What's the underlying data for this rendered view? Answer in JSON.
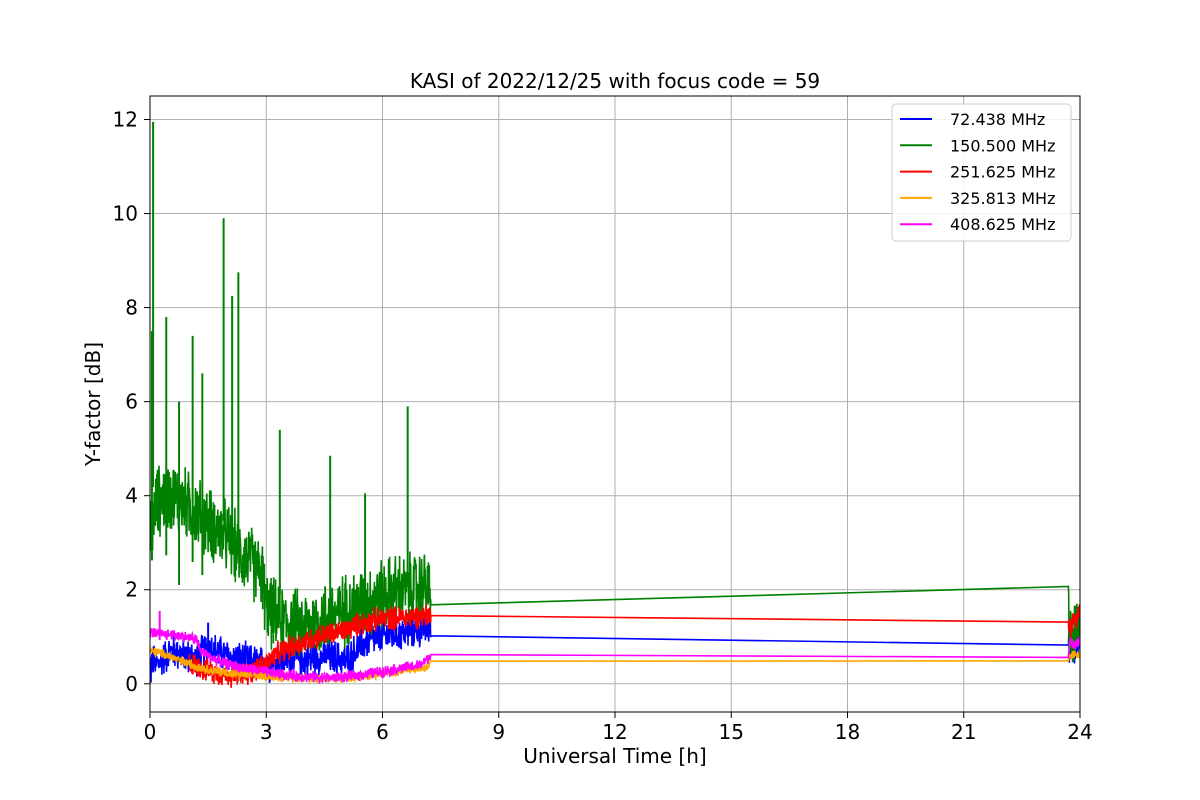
{
  "chart_data": {
    "type": "line",
    "title": "KASI of 2022/12/25 with focus code = 59",
    "xlabel": "Universal Time [h]",
    "ylabel": "Y-factor [dB]",
    "xlim": [
      0,
      24
    ],
    "ylim": [
      -0.6,
      12.5
    ],
    "xticks": [
      0,
      3,
      6,
      9,
      12,
      15,
      18,
      21,
      24
    ],
    "yticks": [
      0,
      2,
      4,
      6,
      8,
      10,
      12
    ],
    "grid": true,
    "legend_position": "top-right",
    "series": [
      {
        "name": " 72.438 MHz",
        "color": "#0000ff",
        "points": [
          [
            0,
            0.1
          ],
          [
            0.05,
            0.5
          ],
          [
            0.2,
            0.4
          ],
          [
            0.4,
            0.6
          ],
          [
            0.6,
            0.7
          ],
          [
            0.9,
            0.6
          ],
          [
            1.2,
            0.55
          ],
          [
            1.5,
            0.8
          ],
          [
            1.8,
            0.65
          ],
          [
            2.1,
            0.55
          ],
          [
            2.4,
            0.5
          ],
          [
            2.7,
            0.45
          ],
          [
            3.0,
            0.4
          ],
          [
            3.3,
            0.45
          ],
          [
            3.6,
            0.55
          ],
          [
            3.9,
            0.5
          ],
          [
            4.2,
            0.55
          ],
          [
            4.5,
            0.6
          ],
          [
            4.8,
            0.55
          ],
          [
            5.1,
            0.5
          ],
          [
            5.4,
            0.8
          ],
          [
            5.7,
            0.95
          ],
          [
            6.0,
            1.0
          ],
          [
            6.3,
            1.05
          ],
          [
            6.6,
            1.1
          ],
          [
            6.9,
            1.15
          ],
          [
            7.2,
            1.2
          ],
          [
            7.25,
            1.02
          ],
          [
            23.7,
            1.0
          ],
          [
            23.75,
            0.7
          ],
          [
            24,
            0.85
          ]
        ],
        "noise": 0.45
      },
      {
        "name": "150.500 MHz",
        "color": "#008000",
        "points": [
          [
            0,
            3.2
          ],
          [
            0.2,
            3.9
          ],
          [
            0.5,
            4.0
          ],
          [
            0.8,
            3.9
          ],
          [
            1.1,
            3.7
          ],
          [
            1.4,
            3.5
          ],
          [
            1.7,
            3.3
          ],
          [
            2.0,
            3.1
          ],
          [
            2.3,
            2.8
          ],
          [
            2.6,
            2.6
          ],
          [
            2.9,
            2.3
          ],
          [
            3.0,
            1.6
          ],
          [
            3.3,
            1.4
          ],
          [
            3.6,
            1.3
          ],
          [
            3.9,
            1.2
          ],
          [
            4.2,
            1.3
          ],
          [
            4.5,
            1.4
          ],
          [
            4.8,
            1.5
          ],
          [
            5.1,
            1.6
          ],
          [
            5.4,
            1.7
          ],
          [
            5.7,
            1.8
          ],
          [
            6.0,
            1.9
          ],
          [
            6.3,
            2.0
          ],
          [
            6.6,
            2.0
          ],
          [
            6.9,
            2.05
          ],
          [
            7.2,
            2.1
          ],
          [
            7.25,
            1.68
          ],
          [
            23.7,
            1.66
          ],
          [
            23.75,
            0.8
          ],
          [
            24,
            1.2
          ]
        ],
        "noise": 0.9
      },
      {
        "name": "251.625 MHz",
        "color": "#ff0000",
        "points": [
          [
            1.0,
            0.45
          ],
          [
            1.3,
            0.35
          ],
          [
            1.6,
            0.25
          ],
          [
            1.9,
            0.2
          ],
          [
            2.2,
            0.18
          ],
          [
            2.5,
            0.2
          ],
          [
            2.8,
            0.35
          ],
          [
            3.1,
            0.5
          ],
          [
            3.4,
            0.7
          ],
          [
            3.7,
            0.8
          ],
          [
            4.0,
            0.9
          ],
          [
            4.3,
            1.0
          ],
          [
            4.6,
            1.05
          ],
          [
            4.9,
            1.1
          ],
          [
            5.2,
            1.2
          ],
          [
            5.5,
            1.3
          ],
          [
            5.8,
            1.35
          ],
          [
            6.1,
            1.4
          ],
          [
            6.4,
            1.4
          ],
          [
            6.7,
            1.42
          ],
          [
            7.0,
            1.45
          ],
          [
            7.25,
            1.45
          ],
          [
            23.7,
            1.45
          ],
          [
            23.75,
            1.2
          ],
          [
            24,
            1.6
          ]
        ],
        "noise": 0.3
      },
      {
        "name": "325.813 MHz",
        "color": "#ffa500",
        "points": [
          [
            0,
            0.7
          ],
          [
            0.3,
            0.65
          ],
          [
            0.6,
            0.55
          ],
          [
            0.9,
            0.45
          ],
          [
            1.2,
            0.38
          ],
          [
            1.5,
            0.3
          ],
          [
            1.8,
            0.25
          ],
          [
            2.1,
            0.22
          ],
          [
            2.4,
            0.2
          ],
          [
            2.7,
            0.18
          ],
          [
            3.0,
            0.17
          ],
          [
            3.3,
            0.15
          ],
          [
            3.6,
            0.14
          ],
          [
            3.9,
            0.12
          ],
          [
            4.2,
            0.12
          ],
          [
            4.5,
            0.12
          ],
          [
            4.8,
            0.12
          ],
          [
            5.1,
            0.13
          ],
          [
            5.4,
            0.15
          ],
          [
            5.7,
            0.18
          ],
          [
            6.0,
            0.22
          ],
          [
            6.3,
            0.26
          ],
          [
            6.6,
            0.3
          ],
          [
            6.9,
            0.33
          ],
          [
            7.2,
            0.35
          ],
          [
            7.25,
            0.48
          ],
          [
            23.7,
            0.48
          ],
          [
            23.75,
            0.6
          ],
          [
            24,
            0.65
          ]
        ],
        "noise": 0.12
      },
      {
        "name": "408.625 MHz",
        "color": "#ff00ff",
        "points": [
          [
            0,
            1.1
          ],
          [
            0.3,
            1.05
          ],
          [
            0.6,
            1.05
          ],
          [
            0.9,
            1.0
          ],
          [
            1.2,
            0.95
          ],
          [
            1.3,
            0.7
          ],
          [
            1.6,
            0.55
          ],
          [
            1.9,
            0.45
          ],
          [
            2.2,
            0.38
          ],
          [
            2.5,
            0.32
          ],
          [
            2.8,
            0.28
          ],
          [
            3.1,
            0.24
          ],
          [
            3.4,
            0.2
          ],
          [
            3.7,
            0.17
          ],
          [
            4.0,
            0.15
          ],
          [
            4.3,
            0.14
          ],
          [
            4.6,
            0.13
          ],
          [
            4.9,
            0.14
          ],
          [
            5.2,
            0.16
          ],
          [
            5.5,
            0.2
          ],
          [
            5.8,
            0.24
          ],
          [
            6.1,
            0.28
          ],
          [
            6.4,
            0.32
          ],
          [
            6.7,
            0.36
          ],
          [
            7.0,
            0.4
          ],
          [
            7.25,
            0.62
          ],
          [
            23.7,
            0.62
          ],
          [
            23.75,
            0.85
          ],
          [
            24,
            0.9
          ]
        ],
        "noise": 0.14
      }
    ],
    "spikes": [
      {
        "series": 1,
        "x": 0.08,
        "y": 11.95
      },
      {
        "series": 1,
        "x": 0.05,
        "y": 7.5
      },
      {
        "series": 1,
        "x": 0.42,
        "y": 7.8
      },
      {
        "series": 1,
        "x": 1.1,
        "y": 7.4
      },
      {
        "series": 1,
        "x": 0.75,
        "y": 6.0
      },
      {
        "series": 1,
        "x": 1.35,
        "y": 6.6
      },
      {
        "series": 1,
        "x": 1.9,
        "y": 9.9
      },
      {
        "series": 1,
        "x": 2.12,
        "y": 8.25
      },
      {
        "series": 1,
        "x": 2.28,
        "y": 8.75
      },
      {
        "series": 1,
        "x": 3.35,
        "y": 5.4
      },
      {
        "series": 1,
        "x": 4.65,
        "y": 4.85
      },
      {
        "series": 1,
        "x": 5.55,
        "y": 4.05
      },
      {
        "series": 1,
        "x": 6.65,
        "y": 5.9
      },
      {
        "series": 4,
        "x": 0.25,
        "y": 1.55
      },
      {
        "series": 0,
        "x": 1.5,
        "y": 1.3
      }
    ]
  }
}
